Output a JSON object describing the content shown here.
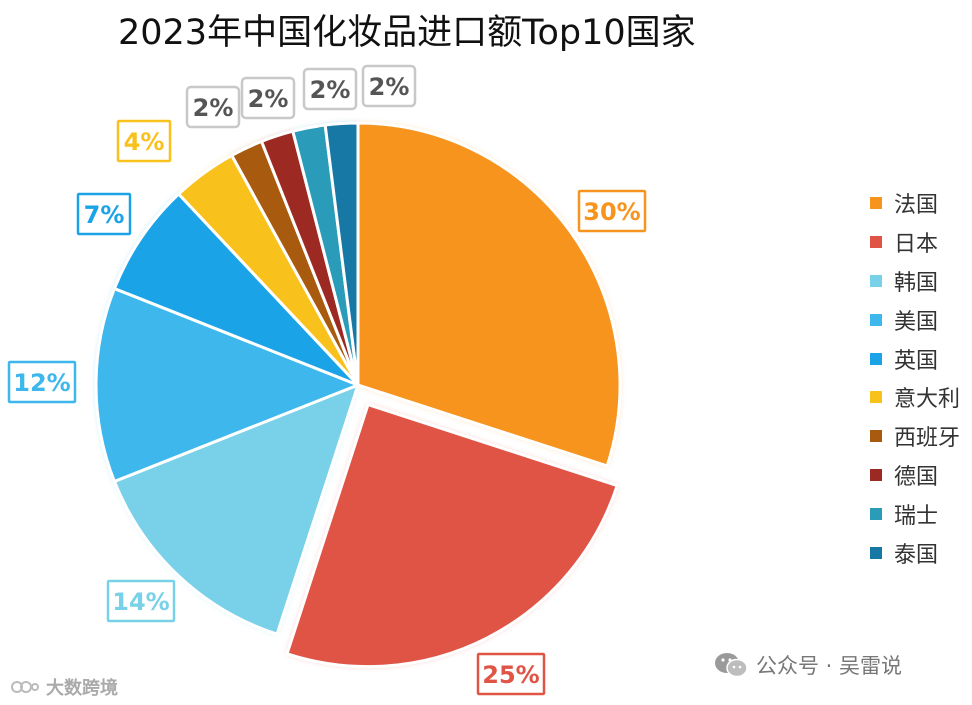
{
  "chart_data": {
    "type": "pie",
    "title": "2023年中国化妆品进口额Top10国家",
    "slices": [
      {
        "name": "法国",
        "value": 30,
        "label": "30%",
        "color": "#F7941D"
      },
      {
        "name": "日本",
        "value": 25,
        "label": "25%",
        "color": "#E05446"
      },
      {
        "name": "韩国",
        "value": 14,
        "label": "14%",
        "color": "#78D1E8"
      },
      {
        "name": "美国",
        "value": 12,
        "label": "12%",
        "color": "#3DB7EC"
      },
      {
        "name": "英国",
        "value": 7,
        "label": "7%",
        "color": "#1AA3E6"
      },
      {
        "name": "意大利",
        "value": 4,
        "label": "4%",
        "color": "#F9C11C"
      },
      {
        "name": "西班牙",
        "value": 2,
        "label": "2%",
        "color": "#A85A0E"
      },
      {
        "name": "德国",
        "value": 2,
        "label": "2%",
        "color": "#9C2A22"
      },
      {
        "name": "瑞士",
        "value": 2,
        "label": "2%",
        "color": "#2A9BB8"
      },
      {
        "name": "泰国",
        "value": 2,
        "label": "2%",
        "color": "#1878A5"
      }
    ],
    "exploded": "日本",
    "legend_position": "right"
  },
  "watermark": "公众号 · 吴雷说",
  "logo_text": "大数跨境",
  "icons": {
    "watermark": "wechat-icon",
    "logo": "logo-icon"
  }
}
